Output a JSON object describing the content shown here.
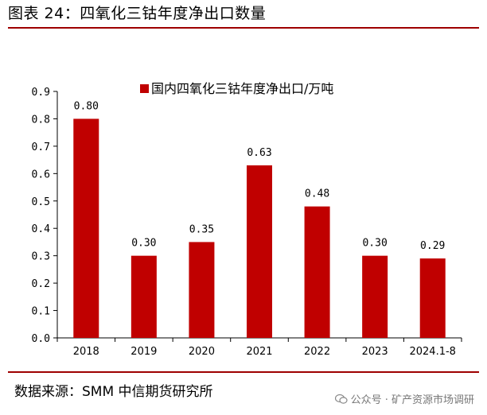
{
  "figure": {
    "title": "图表 24：四氧化三钴年度净出口数量",
    "source": "数据来源：SMM 中信期货研究所",
    "watermark": "公众号 · 矿产资源市场调研",
    "accent_color": "#c00000",
    "rule_color": "#9e0000"
  },
  "chart_data": {
    "type": "bar",
    "title": "",
    "xlabel": "",
    "ylabel": "",
    "categories": [
      "2018",
      "2019",
      "2020",
      "2021",
      "2022",
      "2023",
      "2024.1-8"
    ],
    "series": [
      {
        "name": "国内四氧化三钴年度净出口/万吨",
        "values": [
          0.8,
          0.3,
          0.35,
          0.63,
          0.48,
          0.3,
          0.29
        ],
        "value_labels": [
          "0.80",
          "0.30",
          "0.35",
          "0.63",
          "0.48",
          "0.30",
          "0.29"
        ],
        "color": "#c00000"
      }
    ],
    "ylim": [
      0,
      0.9
    ],
    "yticks": [
      0.0,
      0.1,
      0.2,
      0.3,
      0.4,
      0.5,
      0.6,
      0.7,
      0.8,
      0.9
    ],
    "ytick_labels": [
      "0.0",
      "0.1",
      "0.2",
      "0.3",
      "0.4",
      "0.5",
      "0.6",
      "0.7",
      "0.8",
      "0.9"
    ],
    "grid": false,
    "legend_position": "top-center"
  }
}
